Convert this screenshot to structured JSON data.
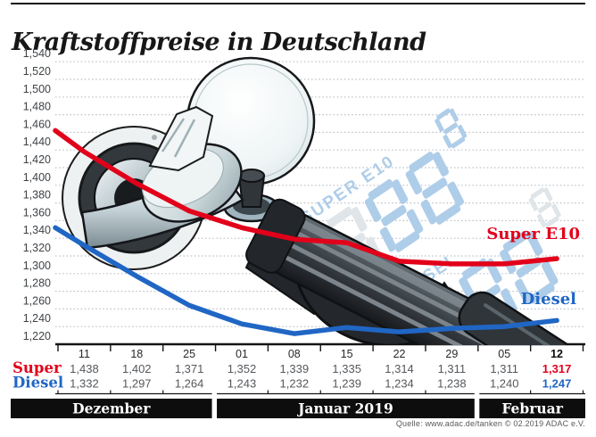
{
  "title": "Kraftstoffpreise in Deutschland",
  "watermark": {
    "super_label": "SUPER E10",
    "diesel_label": "DIESEL",
    "display_digits": "888"
  },
  "line_end_labels": {
    "super": "Super E10",
    "diesel": "Diesel"
  },
  "source": "Quelle: www.adac.de/tanken   © 02.2019  ADAC e.V.",
  "colors": {
    "super": "#e2001a",
    "diesel": "#2066c4",
    "grid": "#b9bfc6",
    "axis": "#141414",
    "value_text": "#54585c",
    "date_text": "#26282a",
    "month_bar_bg": "#0d0d0d",
    "month_bar_text": "#ffffff",
    "watermark_blue": "#aecde9",
    "watermark_ghost": "#dfe5e8"
  },
  "chart_data": {
    "type": "line",
    "title": "Kraftstoffpreise in Deutschland",
    "x_tick_labels": [
      "11",
      "18",
      "25",
      "01",
      "08",
      "15",
      "22",
      "29",
      "05",
      "12"
    ],
    "emphasized_column": 9,
    "ylim": [
      1.22,
      1.54
    ],
    "y_step": 0.02,
    "y_tick_labels": [
      "1,220",
      "1,240",
      "1,260",
      "1,280",
      "1,300",
      "1,320",
      "1,340",
      "1,360",
      "1,380",
      "1,400",
      "1,420",
      "1,440",
      "1,460",
      "1,480",
      "1,500",
      "1,520",
      "1,540"
    ],
    "grid": "dotted-horizontal",
    "legend_position": "line-end-labels-right",
    "months": [
      {
        "label": "Dezember",
        "columns": 3
      },
      {
        "label": "Januar 2019",
        "columns": 5
      },
      {
        "label": "Februar",
        "columns": 2
      }
    ],
    "series": [
      {
        "name": "Super E10",
        "table_label": "Super",
        "color": "#e2001a",
        "lead_in": 1.462,
        "values": [
          1.438,
          1.402,
          1.371,
          1.352,
          1.339,
          1.335,
          1.314,
          1.311,
          1.311,
          1.317
        ]
      },
      {
        "name": "Diesel",
        "table_label": "Diesel",
        "color": "#2066c4",
        "lead_in": 1.352,
        "values": [
          1.332,
          1.297,
          1.264,
          1.243,
          1.232,
          1.239,
          1.234,
          1.238,
          1.24,
          1.247
        ]
      }
    ]
  }
}
